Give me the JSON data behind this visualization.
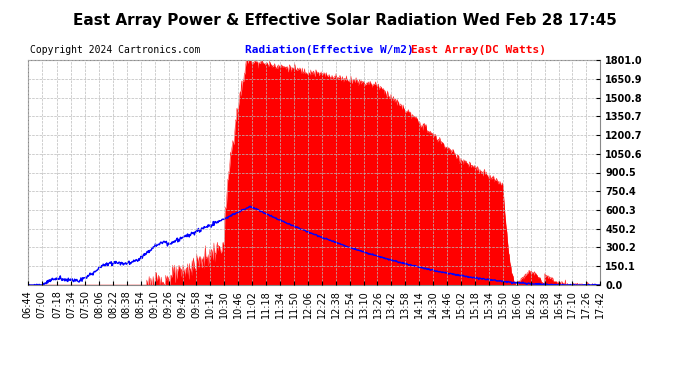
{
  "title": "East Array Power & Effective Solar Radiation Wed Feb 28 17:45",
  "copyright": "Copyright 2024 Cartronics.com",
  "legend_radiation": "Radiation(Effective W/m2)",
  "legend_array": "East Array(DC Watts)",
  "y_ticks": [
    0.0,
    150.1,
    300.2,
    450.2,
    600.3,
    750.4,
    900.5,
    1050.6,
    1200.7,
    1350.7,
    1500.8,
    1650.9,
    1801.0
  ],
  "y_max": 1801.0,
  "y_min": 0.0,
  "radiation_color": "#0000ff",
  "array_color": "#ff0000",
  "plot_bg_color": "#ffffff",
  "title_fontsize": 11,
  "copyright_fontsize": 7,
  "legend_fontsize": 8,
  "tick_fontsize": 7
}
